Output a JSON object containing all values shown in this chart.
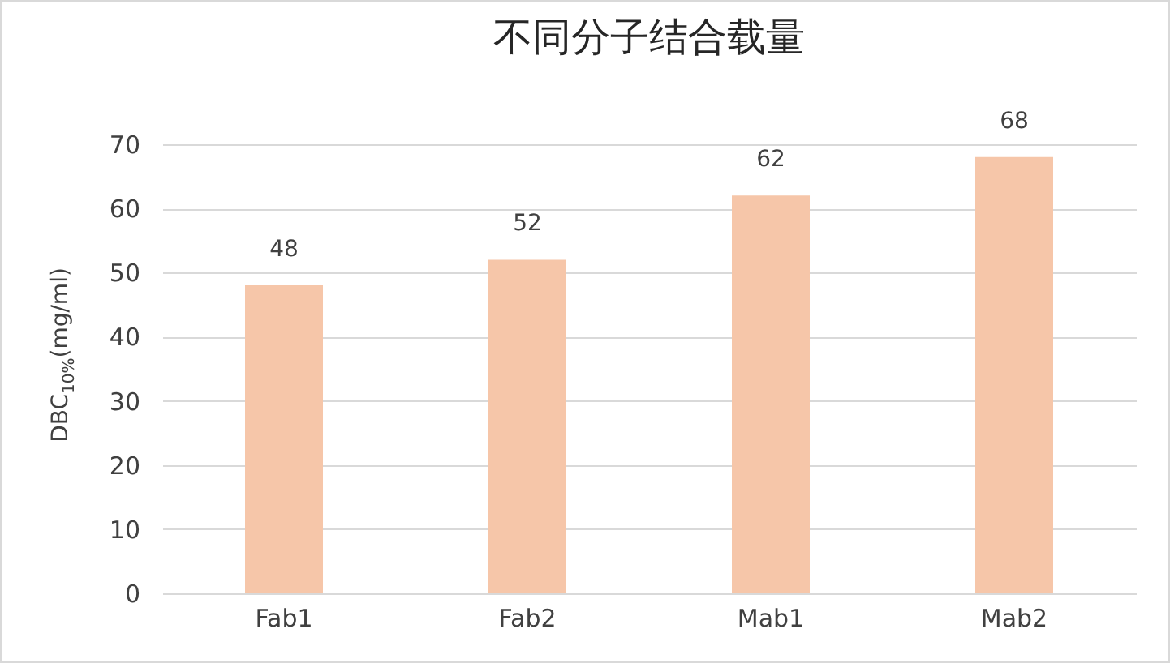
{
  "chart_data": {
    "type": "bar",
    "title": "不同分子结合载量",
    "ylabel": "DBC$_{10%}$(mg/ml)",
    "categories": [
      "Fab1",
      "Fab2",
      "Mab1",
      "Mab2"
    ],
    "values": [
      48,
      52,
      62,
      68
    ],
    "color": "#f6c6a9",
    "ylim": [
      0,
      70
    ],
    "yticks": [
      0,
      10,
      20,
      30,
      40,
      50,
      60,
      70
    ],
    "grid": "y",
    "data_labels": true
  }
}
